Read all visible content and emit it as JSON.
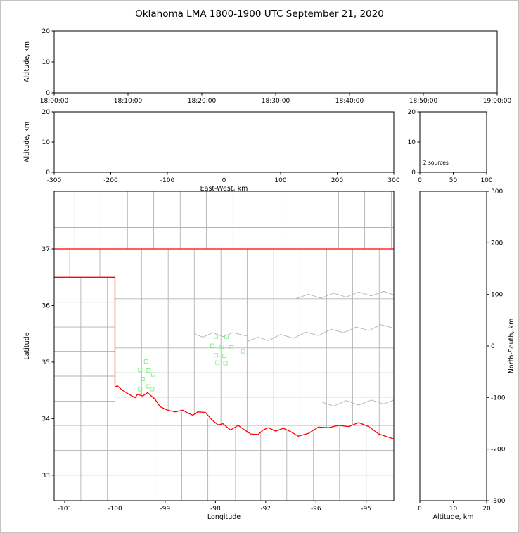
{
  "title": "Oklahoma LMA 1800-1900 UTC September 21, 2020",
  "colors": {
    "state_border": "#ff0000",
    "county_line": "#b3b3b3",
    "source_marker": "#90ee90",
    "axis": "#000000",
    "background": "#ffffff",
    "frame_border": "#c3c3c3"
  },
  "chart_data": [
    {
      "id": "time_height",
      "type": "scatter",
      "xlabel": "",
      "ylabel": "Altitude, km",
      "xlim": [
        0,
        60
      ],
      "xticks": {
        "values": [
          0,
          10,
          20,
          30,
          40,
          50,
          60
        ],
        "labels": [
          "18:00:00",
          "18:10:00",
          "18:20:00",
          "18:30:00",
          "18:40:00",
          "18:50:00",
          "19:00:00"
        ]
      },
      "ylim": [
        0,
        20
      ],
      "yticks": {
        "values": [
          0,
          10,
          20
        ]
      },
      "points": []
    },
    {
      "id": "ew_height",
      "type": "scatter",
      "xlabel": "East-West, km",
      "ylabel": "Altitude, km",
      "xlim": [
        -300,
        300
      ],
      "xticks": {
        "values": [
          -300,
          -200,
          -100,
          0,
          100,
          200,
          300
        ]
      },
      "ylim": [
        0,
        20
      ],
      "yticks": {
        "values": [
          0,
          10,
          20
        ]
      },
      "points": []
    },
    {
      "id": "height_hist",
      "type": "line",
      "xlabel": "",
      "ylabel": "",
      "xlim": [
        0,
        100
      ],
      "xticks": {
        "values": [
          0,
          50,
          100
        ]
      },
      "ylim": [
        0,
        20
      ],
      "yticks": {
        "values": [
          0,
          10,
          20
        ]
      },
      "annotation": {
        "text": "2 sources",
        "fx": 0.05,
        "fy": 0.13
      },
      "points": []
    },
    {
      "id": "map",
      "type": "scatter",
      "xlabel": "Longitude",
      "ylabel": "Latitude",
      "xlim": [
        -101.21,
        -94.45
      ],
      "xticks": {
        "values": [
          -101,
          -100,
          -99,
          -98,
          -97,
          -96,
          -95
        ]
      },
      "ylim": [
        32.55,
        38.02
      ],
      "yticks": {
        "values": [
          33,
          34,
          35,
          36,
          37
        ]
      },
      "county_v": [
        [
          -100.8,
          37,
          38.02
        ],
        [
          -100.28,
          37,
          38.02
        ],
        [
          -99.75,
          37,
          38.02
        ],
        [
          -99.23,
          37,
          38.02
        ],
        [
          -98.7,
          37,
          38.02
        ],
        [
          -98.18,
          37,
          38.02
        ],
        [
          -97.65,
          37,
          38.02
        ],
        [
          -97.13,
          37,
          38.02
        ],
        [
          -96.6,
          37,
          38.02
        ],
        [
          -96.08,
          37,
          38.02
        ],
        [
          -95.55,
          37,
          38.02
        ],
        [
          -95.03,
          37,
          38.02
        ],
        [
          -94.5,
          37,
          38.02
        ],
        [
          -100.9,
          36.5,
          37
        ],
        [
          -100.3,
          36.5,
          37
        ],
        [
          -100.68,
          32.55,
          36.5
        ],
        [
          -100.15,
          32.55,
          36.5
        ],
        [
          -99.47,
          34.4,
          37
        ],
        [
          -98.94,
          34.15,
          37
        ],
        [
          -98.42,
          34.07,
          37
        ],
        [
          -97.89,
          33.9,
          37
        ],
        [
          -97.37,
          33.74,
          37
        ],
        [
          -96.84,
          33.78,
          37
        ],
        [
          -96.32,
          33.7,
          37
        ],
        [
          -95.79,
          33.85,
          37
        ],
        [
          -95.27,
          33.9,
          37
        ],
        [
          -94.74,
          33.7,
          37
        ],
        [
          -99.2,
          32.55,
          34.37
        ],
        [
          -98.67,
          32.55,
          34.12
        ],
        [
          -98.15,
          32.55,
          34.0
        ],
        [
          -97.6,
          32.55,
          33.85
        ],
        [
          -97.1,
          32.55,
          33.75
        ],
        [
          -96.58,
          32.55,
          33.8
        ],
        [
          -96.05,
          32.55,
          33.75
        ],
        [
          -95.53,
          32.55,
          33.87
        ],
        [
          -95.0,
          32.55,
          33.88
        ]
      ],
      "county_h": [
        [
          37.74,
          -101.21,
          -94.45
        ],
        [
          37.38,
          -101.21,
          -94.45
        ],
        [
          36.06,
          -101.21,
          -100
        ],
        [
          35.62,
          -101.21,
          -100
        ],
        [
          35.19,
          -101.21,
          -100
        ],
        [
          34.75,
          -101.21,
          -100
        ],
        [
          34.31,
          -101.21,
          -100
        ],
        [
          36.56,
          -100,
          -94.45
        ],
        [
          36.12,
          -100,
          -94.45
        ],
        [
          35.69,
          -100,
          -94.45
        ],
        [
          35.25,
          -100,
          -94.45
        ],
        [
          34.81,
          -100,
          -94.45
        ],
        [
          34.38,
          -100,
          -94.45
        ],
        [
          33.88,
          -101.21,
          -94.45
        ],
        [
          33.44,
          -101.21,
          -94.45
        ],
        [
          33.0,
          -101.21,
          -94.45
        ]
      ],
      "county_paths": [
        [
          [
            -97.35,
            35.37
          ],
          [
            -97.15,
            35.44
          ],
          [
            -96.95,
            35.38
          ],
          [
            -96.7,
            35.49
          ],
          [
            -96.45,
            35.42
          ],
          [
            -96.2,
            35.53
          ],
          [
            -95.95,
            35.47
          ],
          [
            -95.7,
            35.58
          ],
          [
            -95.45,
            35.52
          ],
          [
            -95.2,
            35.62
          ],
          [
            -94.95,
            35.56
          ],
          [
            -94.7,
            35.66
          ],
          [
            -94.45,
            35.6
          ]
        ],
        [
          [
            -96.4,
            36.12
          ],
          [
            -96.15,
            36.2
          ],
          [
            -95.9,
            36.13
          ],
          [
            -95.65,
            36.22
          ],
          [
            -95.4,
            36.15
          ],
          [
            -95.15,
            36.24
          ],
          [
            -94.9,
            36.17
          ],
          [
            -94.65,
            36.25
          ],
          [
            -94.45,
            36.19
          ]
        ],
        [
          [
            -98.42,
            35.5
          ],
          [
            -98.25,
            35.44
          ],
          [
            -98.05,
            35.52
          ],
          [
            -97.85,
            35.45
          ],
          [
            -97.65,
            35.52
          ],
          [
            -97.37,
            35.46
          ]
        ],
        [
          [
            -95.9,
            34.3
          ],
          [
            -95.65,
            34.22
          ],
          [
            -95.4,
            34.32
          ],
          [
            -95.15,
            34.24
          ],
          [
            -94.9,
            34.33
          ],
          [
            -94.65,
            34.26
          ],
          [
            -94.45,
            34.33
          ]
        ]
      ],
      "state_border_paths": [
        [
          [
            -101.21,
            37
          ],
          [
            -94.45,
            37
          ]
        ],
        [
          [
            -101.21,
            36.5
          ],
          [
            -100,
            36.5
          ],
          [
            -100,
            34.56
          ],
          [
            -99.95,
            34.58
          ],
          [
            -99.85,
            34.5
          ],
          [
            -99.72,
            34.43
          ],
          [
            -99.6,
            34.37
          ],
          [
            -99.55,
            34.43
          ],
          [
            -99.45,
            34.4
          ],
          [
            -99.35,
            34.46
          ],
          [
            -99.2,
            34.34
          ],
          [
            -99.1,
            34.21
          ],
          [
            -98.95,
            34.15
          ],
          [
            -98.8,
            34.12
          ],
          [
            -98.65,
            34.15
          ],
          [
            -98.55,
            34.1
          ],
          [
            -98.45,
            34.06
          ],
          [
            -98.35,
            34.12
          ],
          [
            -98.2,
            34.11
          ],
          [
            -98.08,
            33.99
          ],
          [
            -97.95,
            33.89
          ],
          [
            -97.85,
            33.91
          ],
          [
            -97.7,
            33.8
          ],
          [
            -97.55,
            33.88
          ],
          [
            -97.45,
            33.82
          ],
          [
            -97.3,
            33.73
          ],
          [
            -97.15,
            33.72
          ],
          [
            -97.05,
            33.8
          ],
          [
            -96.95,
            33.84
          ],
          [
            -96.8,
            33.78
          ],
          [
            -96.65,
            33.83
          ],
          [
            -96.5,
            33.77
          ],
          [
            -96.35,
            33.69
          ],
          [
            -96.15,
            33.74
          ],
          [
            -95.95,
            33.85
          ],
          [
            -95.75,
            33.84
          ],
          [
            -95.55,
            33.88
          ],
          [
            -95.35,
            33.86
          ],
          [
            -95.15,
            33.93
          ],
          [
            -94.95,
            33.86
          ],
          [
            -94.75,
            33.73
          ],
          [
            -94.55,
            33.67
          ],
          [
            -94.45,
            33.64
          ]
        ]
      ],
      "points": [
        [
          -97.99,
          35.45
        ],
        [
          -97.78,
          35.45
        ],
        [
          -98.06,
          35.29
        ],
        [
          -97.87,
          35.27
        ],
        [
          -97.68,
          35.26
        ],
        [
          -97.99,
          35.12
        ],
        [
          -97.82,
          35.11
        ],
        [
          -97.45,
          35.19
        ],
        [
          -97.96,
          34.99
        ],
        [
          -97.8,
          34.98
        ],
        [
          -99.38,
          35.01
        ],
        [
          -99.5,
          34.86
        ],
        [
          -99.33,
          34.85
        ],
        [
          -99.24,
          34.78
        ],
        [
          -99.45,
          34.7
        ],
        [
          -99.33,
          34.57
        ],
        [
          -99.5,
          34.52
        ],
        [
          -99.26,
          34.52
        ]
      ]
    },
    {
      "id": "ns_height",
      "type": "scatter",
      "xlabel": "Altitude, km",
      "ylabel": "North-South, km",
      "yside": "right",
      "xlim": [
        0,
        20
      ],
      "xticks": {
        "values": [
          0,
          10,
          20
        ]
      },
      "ylim": [
        -300,
        300
      ],
      "yticks": {
        "values": [
          -300,
          -200,
          -100,
          0,
          100,
          200,
          300
        ]
      },
      "points": []
    }
  ]
}
